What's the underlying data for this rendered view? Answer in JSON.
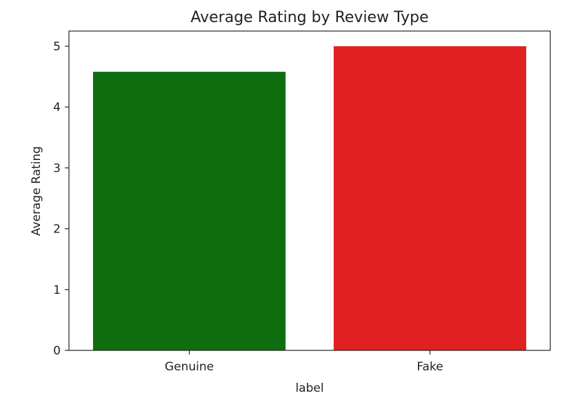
{
  "chart_data": {
    "type": "bar",
    "title": "Average Rating by Review Type",
    "xlabel": "label",
    "ylabel": "Average Rating",
    "categories": [
      "Genuine",
      "Fake"
    ],
    "values": [
      4.58,
      5.0
    ],
    "bar_colors": [
      "#0e6e10",
      "#e02020"
    ],
    "ylim": [
      0,
      5.25
    ],
    "yticks": [
      0,
      1,
      2,
      3,
      4,
      5
    ],
    "grid": false,
    "legend": "none"
  }
}
